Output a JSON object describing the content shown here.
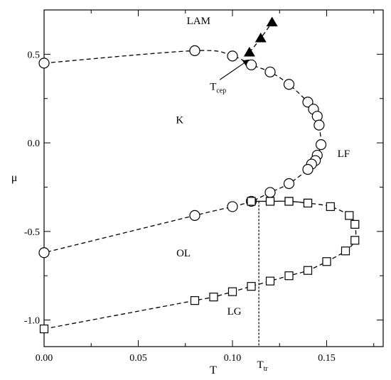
{
  "colors": {
    "ink": "#000000",
    "background": "#ffffff"
  },
  "chart_data": {
    "type": "scatter",
    "title": "",
    "xlabel": "T",
    "ylabel": "μ",
    "xlim": [
      0,
      0.18
    ],
    "ylim": [
      -1.15,
      0.75
    ],
    "xticks": [
      0,
      0.05,
      0.1,
      0.15
    ],
    "xtick_labels": [
      "0.00",
      "0.05",
      "0.10",
      "0.15"
    ],
    "yticks": [
      -1.0,
      -0.5,
      0.0,
      0.5
    ],
    "ytick_labels": [
      "-1.0",
      "-0.5",
      "0.0",
      "0.5"
    ],
    "grid": false,
    "legend": "none",
    "series": [
      {
        "marker": "circle",
        "line": "dashed",
        "x": [
          0.0,
          0.08,
          0.1,
          0.11,
          0.12,
          0.13,
          0.14,
          0.143,
          0.145,
          0.146,
          0.147,
          0.145,
          0.144,
          0.142,
          0.14,
          0.13,
          0.12,
          0.11,
          0.1,
          0.08,
          0.0
        ],
        "y": [
          0.45,
          0.52,
          0.49,
          0.44,
          0.4,
          0.33,
          0.23,
          0.19,
          0.15,
          0.1,
          -0.01,
          -0.07,
          -0.1,
          -0.12,
          -0.15,
          -0.23,
          -0.28,
          -0.33,
          -0.36,
          -0.41,
          -0.62
        ]
      },
      {
        "marker": "square",
        "line": "dashed",
        "x": [
          0.0,
          0.08,
          0.09,
          0.1,
          0.11,
          0.12,
          0.13,
          0.14,
          0.15,
          0.16,
          0.165,
          0.165,
          0.162,
          0.152,
          0.14,
          0.13,
          0.12,
          0.11,
          0.12,
          0.13,
          0.14
        ],
        "y": [
          -1.05,
          -0.89,
          -0.87,
          -0.84,
          -0.81,
          -0.78,
          -0.75,
          -0.72,
          -0.67,
          -0.61,
          -0.55,
          -0.46,
          -0.41,
          -0.36,
          -0.34,
          -0.33,
          -0.33,
          -0.33,
          -0.33,
          -0.33,
          -0.34
        ]
      },
      {
        "marker": "filled-triangle",
        "line": "dashed",
        "x": [
          0.109,
          0.115,
          0.121
        ],
        "y": [
          0.51,
          0.59,
          0.68
        ]
      }
    ],
    "vertical_line": {
      "x": 0.114,
      "style": "dotted",
      "y_from": -1.15,
      "y_to": -0.33
    },
    "region_labels": [
      {
        "text": "LAM",
        "x": 0.082,
        "y": 0.67
      },
      {
        "text": "K",
        "x": 0.072,
        "y": 0.11
      },
      {
        "text": "LF",
        "x": 0.159,
        "y": -0.08
      },
      {
        "text": "OL",
        "x": 0.074,
        "y": -0.64
      },
      {
        "text": "LG",
        "x": 0.101,
        "y": -0.97
      }
    ],
    "annotations": [
      {
        "main": "T",
        "sub": "cep",
        "x": 0.088,
        "y": 0.3,
        "arrow_to": [
          0.109,
          0.48
        ]
      },
      {
        "main": "T",
        "sub": "tr",
        "x": 0.113,
        "y": -1.27
      }
    ]
  }
}
